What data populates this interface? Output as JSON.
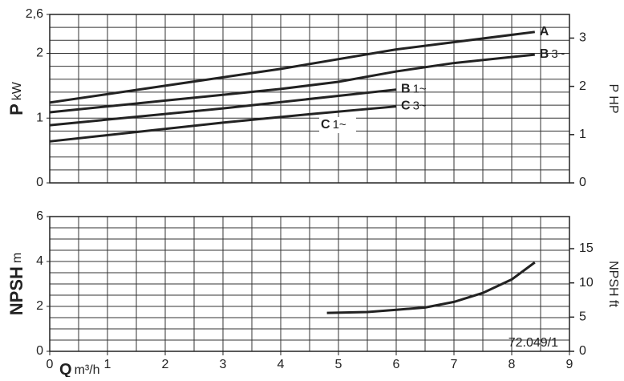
{
  "chart_data": [
    {
      "type": "line",
      "ylabel": "P",
      "ylabel_unit": "kW",
      "y2label": "P HP",
      "xlim": [
        0,
        9
      ],
      "ylim": [
        0,
        2.6
      ],
      "y2lim": [
        0,
        3.49
      ],
      "yticks": [
        0,
        1,
        2,
        {
          "value": 2.6,
          "label": "2,6"
        }
      ],
      "y2ticks": [
        0,
        1,
        2,
        3
      ],
      "xgrid": [
        0,
        0.5,
        1,
        1.5,
        2,
        2.5,
        3,
        3.5,
        4,
        4.5,
        5,
        5.5,
        6,
        6.5,
        7,
        7.5,
        8,
        8.5,
        9
      ],
      "ygrid": [
        0,
        0.2,
        0.4,
        0.6,
        0.8,
        1,
        1.2,
        1.4,
        1.6,
        1.8,
        2,
        2.2,
        2.4,
        2.6
      ],
      "series": [
        {
          "name": "A",
          "color": "#222222",
          "x": [
            0,
            2,
            4,
            6,
            8.4
          ],
          "values": [
            1.24,
            1.5,
            1.76,
            2.06,
            2.33
          ]
        },
        {
          "name": "B",
          "suffix": "3~",
          "color": "#222222",
          "x": [
            0,
            2,
            4,
            5,
            6,
            7,
            8.4
          ],
          "values": [
            1.09,
            1.27,
            1.45,
            1.56,
            1.72,
            1.85,
            1.98
          ]
        },
        {
          "name": "B",
          "suffix": "1~",
          "color": "#222222",
          "x": [
            0,
            3,
            6
          ],
          "values": [
            0.89,
            1.15,
            1.44
          ]
        },
        {
          "name": "C",
          "suffix": "3~",
          "color": "#222222",
          "x": [
            0,
            3,
            4.5,
            6
          ],
          "values": [
            0.64,
            0.93,
            1.06,
            1.18
          ]
        }
      ],
      "annotation": {
        "text": "C",
        "suffix": "1~"
      }
    },
    {
      "type": "line",
      "ylabel": "NPSH",
      "ylabel_unit": "m",
      "y2label": "NPSH ft",
      "xlabel": "Q",
      "xlabel_unit": "m³/h",
      "code": "72.049/1",
      "xlim": [
        0,
        9
      ],
      "ylim": [
        0,
        6
      ],
      "y2lim": [
        0,
        19.69
      ],
      "xticks": [
        0,
        1,
        2,
        3,
        4,
        5,
        6,
        7,
        8,
        9
      ],
      "yticks": [
        0,
        2,
        4,
        6
      ],
      "y2ticks": [
        0,
        5,
        10,
        15
      ],
      "xgrid": [
        0,
        0.5,
        1,
        1.5,
        2,
        2.5,
        3,
        3.5,
        4,
        4.5,
        5,
        5.5,
        6,
        6.5,
        7,
        7.5,
        8,
        8.5,
        9
      ],
      "ygrid": [
        0,
        0.5,
        1,
        1.5,
        2,
        2.5,
        3,
        3.5,
        4,
        4.5,
        5,
        5.5,
        6
      ],
      "series": [
        {
          "name": "NPSH",
          "color": "#222222",
          "x": [
            4.8,
            5.5,
            6,
            6.5,
            7,
            7.5,
            8,
            8.4
          ],
          "values": [
            1.71,
            1.75,
            1.85,
            1.95,
            2.2,
            2.6,
            3.2,
            3.96
          ]
        }
      ]
    }
  ]
}
